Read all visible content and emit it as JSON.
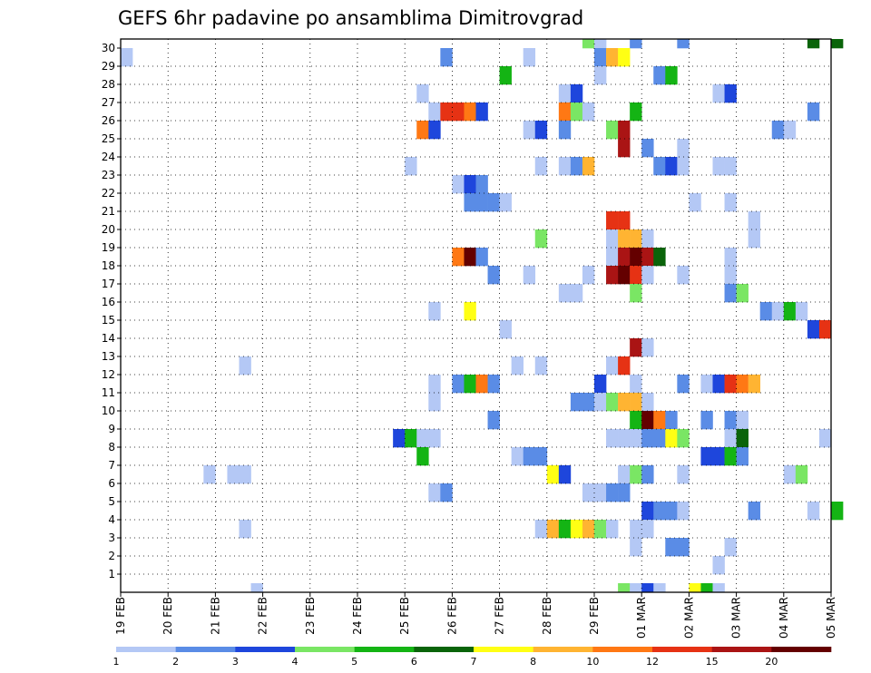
{
  "chart_data": {
    "type": "heatmap",
    "title": "GEFS 6hr padavine po ansamblima Dimitrovgrad",
    "y_tick_labels": [
      "1",
      "2",
      "3",
      "4",
      "5",
      "6",
      "7",
      "8",
      "9",
      "10",
      "11",
      "12",
      "13",
      "14",
      "15",
      "16",
      "17",
      "18",
      "19",
      "20",
      "21",
      "22",
      "23",
      "24",
      "25",
      "26",
      "27",
      "28",
      "29",
      "30"
    ],
    "x_tick_labels": [
      "19 FEB",
      "20 FEB",
      "21 FEB",
      "22 FEB",
      "23 FEB",
      "24 FEB",
      "25 FEB",
      "26 FEB",
      "27 FEB",
      "28 FEB",
      "29 FEB",
      "01 MAR",
      "02 MAR",
      "03 MAR",
      "04 MAR",
      "05 MAR"
    ],
    "ylim": [
      0,
      30
    ],
    "grid": true,
    "colorbar": {
      "labels": [
        "1",
        "2",
        "3",
        "4",
        "5",
        "6",
        "7",
        "8",
        "10",
        "12",
        "15",
        "20"
      ],
      "colors": [
        "#b4c8f5",
        "#5a8ce6",
        "#1e46dc",
        "#7ae664",
        "#14b414",
        "#0a640a",
        "#ffff14",
        "#ffb432",
        "#ff7814",
        "#e63214",
        "#aa1414",
        "#640000"
      ]
    },
    "cells": [
      [
        30,
        39,
        3
      ],
      [
        30,
        40,
        0
      ],
      [
        30,
        43,
        1
      ],
      [
        30,
        47,
        1
      ],
      [
        30,
        58,
        5
      ],
      [
        30,
        60,
        5
      ],
      [
        29,
        0,
        0
      ],
      [
        29,
        27,
        1
      ],
      [
        29,
        34,
        0
      ],
      [
        29,
        40,
        1
      ],
      [
        29,
        41,
        7
      ],
      [
        29,
        42,
        6
      ],
      [
        28,
        32,
        4
      ],
      [
        28,
        40,
        0
      ],
      [
        28,
        45,
        1
      ],
      [
        28,
        46,
        4
      ],
      [
        27,
        25,
        0
      ],
      [
        27,
        37,
        0
      ],
      [
        27,
        38,
        2
      ],
      [
        27,
        50,
        0
      ],
      [
        27,
        51,
        2
      ],
      [
        26,
        26,
        0
      ],
      [
        26,
        27,
        9
      ],
      [
        26,
        28,
        9
      ],
      [
        26,
        29,
        8
      ],
      [
        26,
        30,
        2
      ],
      [
        26,
        37,
        8
      ],
      [
        26,
        38,
        3
      ],
      [
        26,
        39,
        0
      ],
      [
        26,
        43,
        4
      ],
      [
        26,
        58,
        1
      ],
      [
        25,
        25,
        8
      ],
      [
        25,
        26,
        2
      ],
      [
        25,
        34,
        0
      ],
      [
        25,
        35,
        2
      ],
      [
        25,
        37,
        1
      ],
      [
        25,
        41,
        3
      ],
      [
        25,
        42,
        10
      ],
      [
        25,
        55,
        1
      ],
      [
        25,
        56,
        0
      ],
      [
        24,
        42,
        10
      ],
      [
        24,
        44,
        1
      ],
      [
        24,
        47,
        0
      ],
      [
        23,
        24,
        0
      ],
      [
        23,
        35,
        0
      ],
      [
        23,
        37,
        0
      ],
      [
        23,
        38,
        1
      ],
      [
        23,
        39,
        7
      ],
      [
        23,
        45,
        1
      ],
      [
        23,
        46,
        2
      ],
      [
        23,
        47,
        0
      ],
      [
        23,
        50,
        0
      ],
      [
        23,
        51,
        0
      ],
      [
        22,
        28,
        0
      ],
      [
        22,
        29,
        2
      ],
      [
        22,
        30,
        1
      ],
      [
        21,
        29,
        1
      ],
      [
        21,
        30,
        1
      ],
      [
        21,
        31,
        1
      ],
      [
        21,
        32,
        0
      ],
      [
        21,
        48,
        0
      ],
      [
        21,
        51,
        0
      ],
      [
        20,
        41,
        9
      ],
      [
        20,
        42,
        9
      ],
      [
        20,
        53,
        0
      ],
      [
        19,
        35,
        3
      ],
      [
        19,
        41,
        0
      ],
      [
        19,
        42,
        7
      ],
      [
        19,
        43,
        7
      ],
      [
        19,
        44,
        0
      ],
      [
        19,
        53,
        0
      ],
      [
        18,
        28,
        8
      ],
      [
        18,
        29,
        11
      ],
      [
        18,
        30,
        1
      ],
      [
        18,
        41,
        0
      ],
      [
        18,
        42,
        10
      ],
      [
        18,
        43,
        11
      ],
      [
        18,
        44,
        10
      ],
      [
        18,
        45,
        5
      ],
      [
        18,
        51,
        0
      ],
      [
        17,
        31,
        1
      ],
      [
        17,
        34,
        0
      ],
      [
        17,
        39,
        0
      ],
      [
        17,
        41,
        10
      ],
      [
        17,
        42,
        11
      ],
      [
        17,
        43,
        9
      ],
      [
        17,
        44,
        0
      ],
      [
        17,
        47,
        0
      ],
      [
        17,
        51,
        0
      ],
      [
        16,
        37,
        0
      ],
      [
        16,
        38,
        0
      ],
      [
        16,
        43,
        3
      ],
      [
        16,
        51,
        1
      ],
      [
        16,
        52,
        3
      ],
      [
        15,
        26,
        0
      ],
      [
        15,
        29,
        6
      ],
      [
        15,
        54,
        1
      ],
      [
        15,
        55,
        0
      ],
      [
        15,
        56,
        4
      ],
      [
        15,
        57,
        0
      ],
      [
        14,
        32,
        0
      ],
      [
        14,
        58,
        2
      ],
      [
        14,
        59,
        9
      ],
      [
        13,
        43,
        10
      ],
      [
        13,
        44,
        0
      ],
      [
        12,
        10,
        0
      ],
      [
        12,
        33,
        0
      ],
      [
        12,
        35,
        0
      ],
      [
        12,
        41,
        0
      ],
      [
        12,
        42,
        9
      ],
      [
        11,
        26,
        0
      ],
      [
        11,
        28,
        1
      ],
      [
        11,
        29,
        4
      ],
      [
        11,
        30,
        8
      ],
      [
        11,
        31,
        1
      ],
      [
        11,
        40,
        2
      ],
      [
        11,
        43,
        0
      ],
      [
        11,
        47,
        1
      ],
      [
        11,
        49,
        0
      ],
      [
        11,
        50,
        2
      ],
      [
        11,
        51,
        9
      ],
      [
        11,
        52,
        8
      ],
      [
        11,
        53,
        7
      ],
      [
        10,
        26,
        0
      ],
      [
        10,
        38,
        1
      ],
      [
        10,
        39,
        1
      ],
      [
        10,
        40,
        0
      ],
      [
        10,
        41,
        3
      ],
      [
        10,
        42,
        7
      ],
      [
        10,
        43,
        7
      ],
      [
        10,
        44,
        0
      ],
      [
        9,
        31,
        1
      ],
      [
        9,
        43,
        4
      ],
      [
        9,
        44,
        11
      ],
      [
        9,
        45,
        8
      ],
      [
        9,
        46,
        1
      ],
      [
        9,
        49,
        1
      ],
      [
        9,
        51,
        1
      ],
      [
        9,
        52,
        0
      ],
      [
        8,
        23,
        2
      ],
      [
        8,
        24,
        4
      ],
      [
        8,
        25,
        0
      ],
      [
        8,
        26,
        0
      ],
      [
        8,
        41,
        0
      ],
      [
        8,
        42,
        0
      ],
      [
        8,
        43,
        0
      ],
      [
        8,
        44,
        1
      ],
      [
        8,
        45,
        1
      ],
      [
        8,
        46,
        6
      ],
      [
        8,
        47,
        3
      ],
      [
        8,
        51,
        0
      ],
      [
        8,
        52,
        5
      ],
      [
        8,
        59,
        0
      ],
      [
        7,
        25,
        4
      ],
      [
        7,
        33,
        0
      ],
      [
        7,
        34,
        1
      ],
      [
        7,
        35,
        1
      ],
      [
        7,
        49,
        2
      ],
      [
        7,
        50,
        2
      ],
      [
        7,
        51,
        4
      ],
      [
        7,
        52,
        1
      ],
      [
        6,
        7,
        0
      ],
      [
        6,
        9,
        0
      ],
      [
        6,
        10,
        0
      ],
      [
        6,
        36,
        6
      ],
      [
        6,
        37,
        2
      ],
      [
        6,
        42,
        0
      ],
      [
        6,
        43,
        3
      ],
      [
        6,
        44,
        1
      ],
      [
        6,
        47,
        0
      ],
      [
        6,
        56,
        0
      ],
      [
        6,
        57,
        3
      ],
      [
        5,
        26,
        0
      ],
      [
        5,
        27,
        1
      ],
      [
        5,
        39,
        0
      ],
      [
        5,
        40,
        0
      ],
      [
        5,
        41,
        1
      ],
      [
        5,
        42,
        1
      ],
      [
        4,
        44,
        2
      ],
      [
        4,
        45,
        1
      ],
      [
        4,
        46,
        1
      ],
      [
        4,
        47,
        0
      ],
      [
        4,
        53,
        1
      ],
      [
        4,
        58,
        0
      ],
      [
        4,
        60,
        4
      ],
      [
        3,
        10,
        0
      ],
      [
        3,
        35,
        0
      ],
      [
        3,
        36,
        7
      ],
      [
        3,
        37,
        4
      ],
      [
        3,
        38,
        6
      ],
      [
        3,
        39,
        7
      ],
      [
        3,
        40,
        3
      ],
      [
        3,
        41,
        0
      ],
      [
        3,
        43,
        0
      ],
      [
        3,
        44,
        0
      ],
      [
        2,
        43,
        0
      ],
      [
        2,
        46,
        1
      ],
      [
        2,
        47,
        1
      ],
      [
        2,
        51,
        0
      ],
      [
        1,
        50,
        0
      ],
      [
        0,
        11,
        0
      ],
      [
        0,
        42,
        3
      ],
      [
        0,
        43,
        0
      ],
      [
        0,
        44,
        2
      ],
      [
        0,
        45,
        0
      ],
      [
        0,
        48,
        6
      ],
      [
        0,
        49,
        4
      ],
      [
        0,
        50,
        0
      ]
    ]
  }
}
